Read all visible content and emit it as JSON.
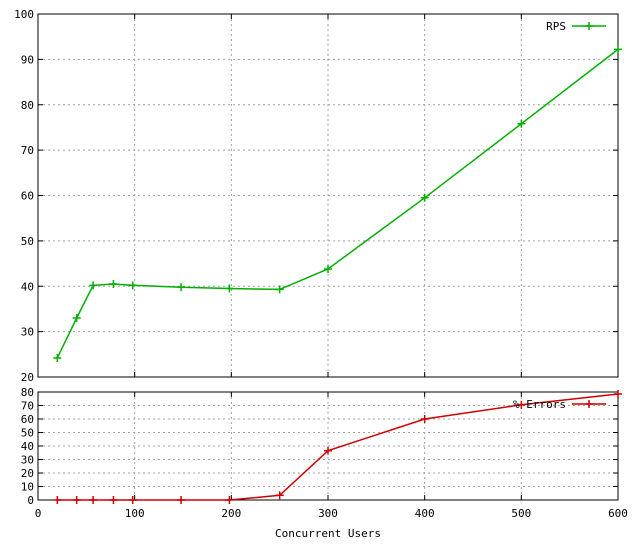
{
  "chart_data": [
    {
      "type": "line",
      "title": "",
      "xlabel": "",
      "ylabel": "",
      "xlim": [
        0,
        600
      ],
      "ylim": [
        20,
        100
      ],
      "yticks": [
        20,
        30,
        40,
        50,
        60,
        70,
        80,
        90,
        100
      ],
      "xticks": [
        0,
        100,
        200,
        300,
        400,
        500,
        600
      ],
      "show_xtick_labels": false,
      "grid": true,
      "legend_position": "top-right",
      "series": [
        {
          "name": "RPS",
          "color": "#00b000",
          "marker": "plus",
          "points": [
            [
              20,
              24.2
            ],
            [
              40,
              33.0
            ],
            [
              57,
              40.2
            ],
            [
              78,
              40.5
            ],
            [
              98,
              40.2
            ],
            [
              148,
              39.8
            ],
            [
              198,
              39.5
            ],
            [
              250,
              39.3
            ],
            [
              300,
              43.8
            ],
            [
              400,
              59.5
            ],
            [
              500,
              75.8
            ],
            [
              600,
              92.2
            ]
          ]
        }
      ]
    },
    {
      "type": "line",
      "title": "",
      "xlabel": "Concurrent Users",
      "ylabel": "",
      "xlim": [
        0,
        600
      ],
      "ylim": [
        0,
        80
      ],
      "yticks": [
        0,
        10,
        20,
        30,
        40,
        50,
        60,
        70,
        80
      ],
      "xticks": [
        0,
        100,
        200,
        300,
        400,
        500,
        600
      ],
      "show_xtick_labels": true,
      "grid": true,
      "legend_position": "top-right",
      "series": [
        {
          "name": "% Errors",
          "color": "#d00000",
          "marker": "plus",
          "points": [
            [
              20,
              0
            ],
            [
              40,
              0
            ],
            [
              57,
              0
            ],
            [
              78,
              0
            ],
            [
              98,
              0
            ],
            [
              148,
              0
            ],
            [
              198,
              0
            ],
            [
              250,
              3.5
            ],
            [
              300,
              36.5
            ],
            [
              400,
              60.0
            ],
            [
              500,
              70.5
            ],
            [
              600,
              78.5
            ]
          ]
        }
      ]
    }
  ]
}
